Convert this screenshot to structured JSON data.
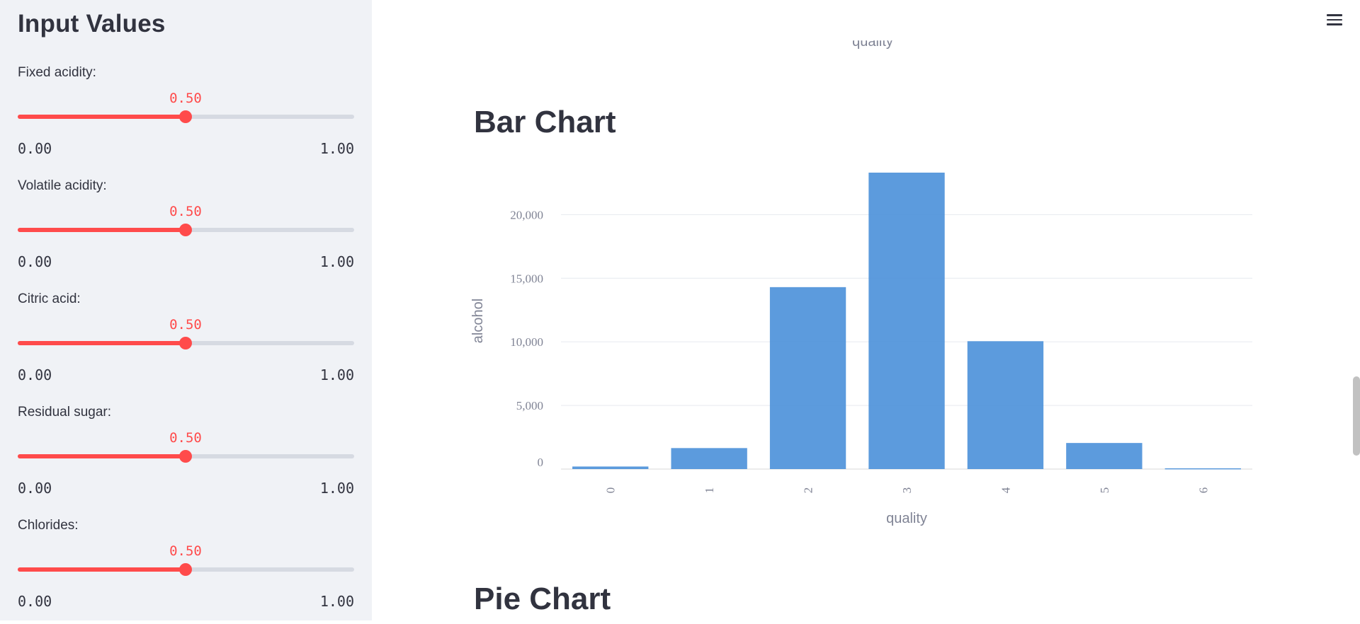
{
  "sidebar": {
    "title": "Input Values",
    "sliders": [
      {
        "label": "Fixed acidity:",
        "value": "0.50",
        "min": "0.00",
        "max": "1.00",
        "fraction": 0.5
      },
      {
        "label": "Volatile acidity:",
        "value": "0.50",
        "min": "0.00",
        "max": "1.00",
        "fraction": 0.5
      },
      {
        "label": "Citric acid:",
        "value": "0.50",
        "min": "0.00",
        "max": "1.00",
        "fraction": 0.5
      },
      {
        "label": "Residual sugar:",
        "value": "0.50",
        "min": "0.00",
        "max": "1.00",
        "fraction": 0.5
      },
      {
        "label": "Chlorides:",
        "value": "0.50",
        "min": "0.00",
        "max": "1.00",
        "fraction": 0.5
      }
    ]
  },
  "main": {
    "prev_chart_xlabel": "quality",
    "bar_heading": "Bar Chart",
    "pie_heading": "Pie Chart",
    "menu_icon": "hamburger-menu-icon"
  },
  "colors": {
    "accent": "#ff4b4b",
    "bar": "#4a90d9",
    "sidebar_bg": "#f0f2f6"
  },
  "chart_data": {
    "type": "bar",
    "categories": [
      "0",
      "1",
      "2",
      "3",
      "4",
      "5",
      "6"
    ],
    "values": [
      200,
      1650,
      14300,
      23300,
      10050,
      2050,
      60
    ],
    "xlabel": "quality",
    "ylabel": "alcohol",
    "yticks": [
      "0",
      "5,000",
      "10,000",
      "15,000",
      "20,000"
    ],
    "ytick_values": [
      0,
      5000,
      10000,
      15000,
      20000
    ],
    "ylim": [
      0,
      23300
    ],
    "grid": true
  }
}
